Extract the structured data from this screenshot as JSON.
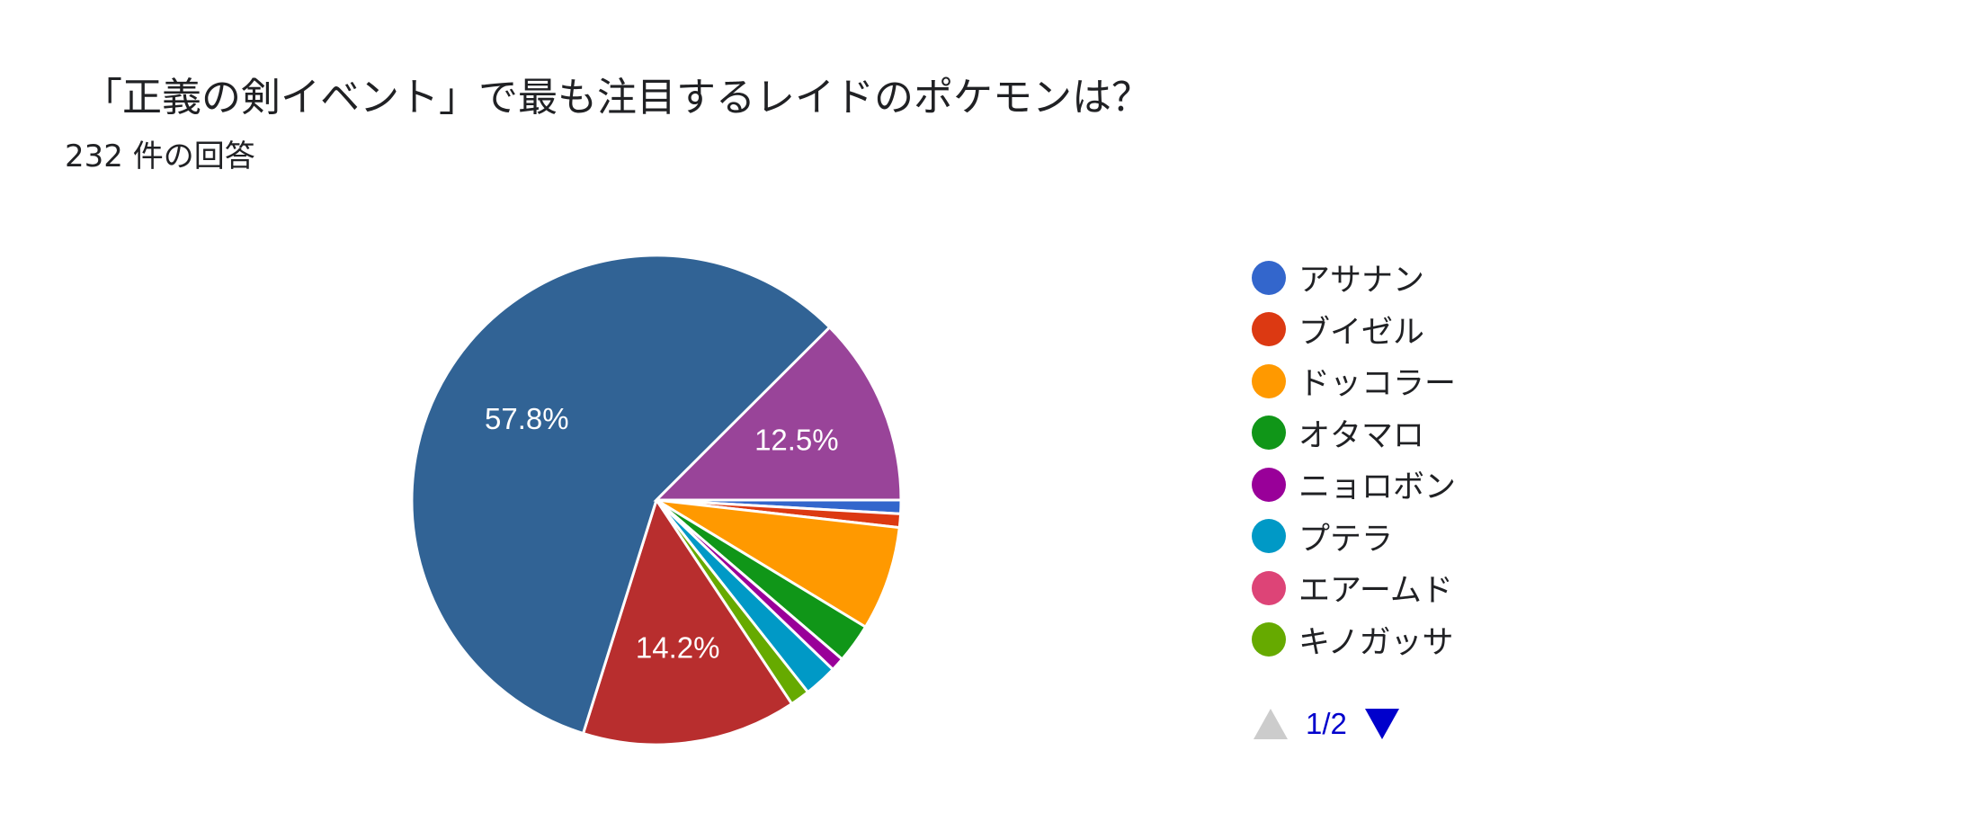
{
  "header": {
    "title": "「正義の剣イベント」で最も注目するレイドのポケモンは？",
    "subtitle": "232 件の回答"
  },
  "chart_data": {
    "type": "pie",
    "total_responses": 232,
    "slices": [
      {
        "name": "アサナン",
        "value": 0.9,
        "color": "#3366cc"
      },
      {
        "name": "ブイゼル",
        "value": 0.9,
        "color": "#dc3912"
      },
      {
        "name": "ドッコラー",
        "value": 6.9,
        "color": "#ff9900"
      },
      {
        "name": "オタマロ",
        "value": 2.6,
        "color": "#109618"
      },
      {
        "name": "ニョロボン",
        "value": 0.9,
        "color": "#990099"
      },
      {
        "name": "プテラ",
        "value": 2.2,
        "color": "#0099c6"
      },
      {
        "name": "エアームド",
        "value": 0.0,
        "color": "#dd4477"
      },
      {
        "name": "キノガッサ",
        "value": 1.3,
        "color": "#66aa00"
      },
      {
        "name": "",
        "value": 14.2,
        "color": "#b82e2e",
        "label": "14.2%"
      },
      {
        "name": "",
        "value": 57.8,
        "color": "#316395",
        "label": "57.8%"
      },
      {
        "name": "",
        "value": 12.5,
        "color": "#994499",
        "label": "12.5%"
      }
    ],
    "start_angle": "3 o'clock, clockwise"
  },
  "legend": {
    "items": [
      {
        "label": "アサナン",
        "color": "#3366cc"
      },
      {
        "label": "ブイゼル",
        "color": "#dc3912"
      },
      {
        "label": "ドッコラー",
        "color": "#ff9900"
      },
      {
        "label": "オタマロ",
        "color": "#109618"
      },
      {
        "label": "ニョロボン",
        "color": "#990099"
      },
      {
        "label": "プテラ",
        "color": "#0099c6"
      },
      {
        "label": "エアームド",
        "color": "#dd4477"
      },
      {
        "label": "キノガッサ",
        "color": "#66aa00"
      }
    ],
    "pager": {
      "text": "1/2",
      "prev_icon": "triangle-up-icon",
      "next_icon": "triangle-down-icon"
    }
  }
}
